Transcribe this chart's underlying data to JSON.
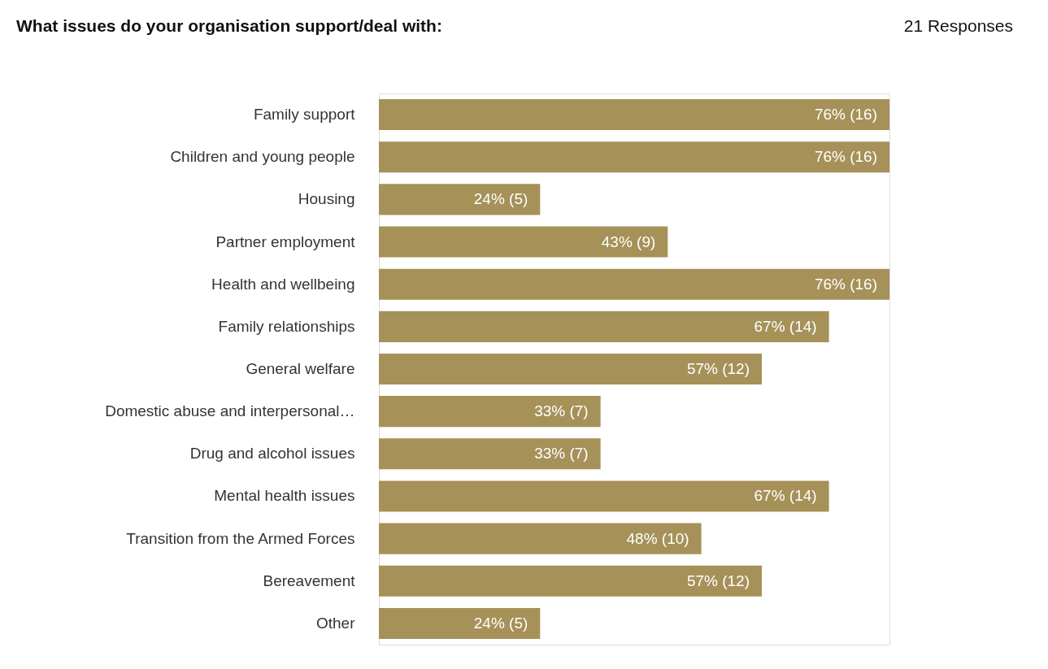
{
  "chart_data": {
    "type": "bar",
    "orientation": "horizontal",
    "title": "What issues do your organisation support/deal with:",
    "annotations": [
      "21 Responses"
    ],
    "categories": [
      "Family support",
      "Children and young people",
      "Housing",
      "Partner employment",
      "Health and wellbeing",
      "Family relationships",
      "General welfare",
      "Domestic abuse and interpersonal…",
      "Drug and alcohol issues",
      "Mental health issues",
      "Transition from the Armed Forces",
      "Bereavement",
      "Other"
    ],
    "values": [
      76,
      76,
      24,
      43,
      76,
      67,
      57,
      33,
      33,
      67,
      48,
      57,
      24
    ],
    "value_labels": [
      "76% (16)",
      "76% (16)",
      "24% (5)",
      "43% (9)",
      "76% (16)",
      "67% (14)",
      "57% (12)",
      "33% (7)",
      "33% (7)",
      "67% (14)",
      "48% (10)",
      "57% (12)",
      "24% (5)"
    ],
    "color": "#a69159"
  }
}
